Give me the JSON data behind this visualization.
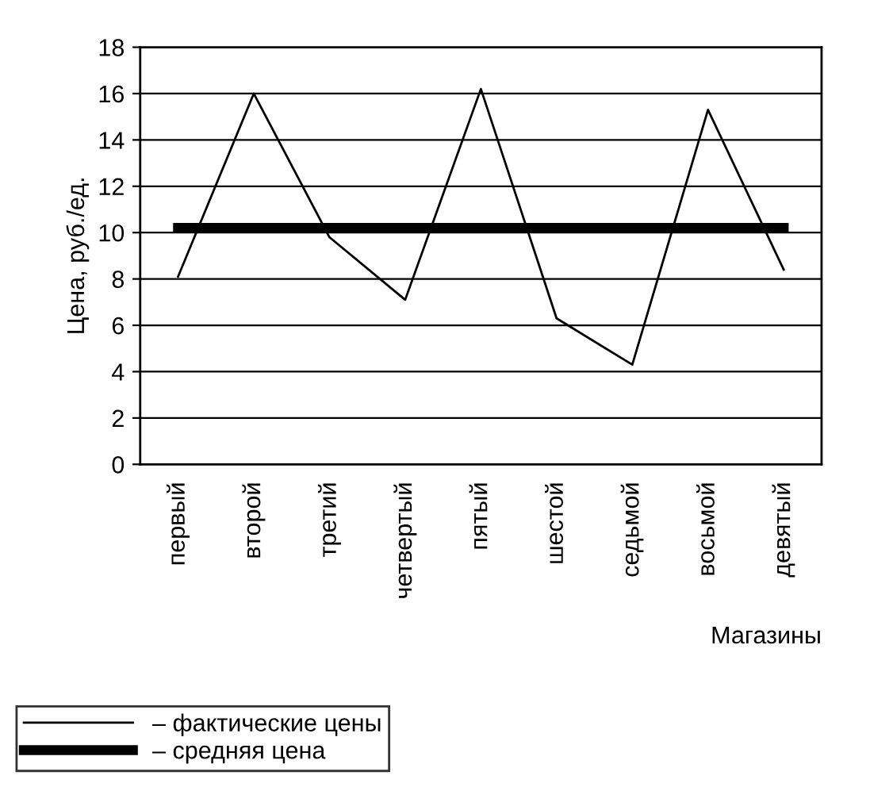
{
  "chart_data": {
    "type": "line",
    "ylabel": "Цена, руб./ед.",
    "xlabel": "Магазины",
    "categories": [
      "первый",
      "второй",
      "третий",
      "четвертый",
      "пятый",
      "шестой",
      "седьмой",
      "восьмой",
      "девятый"
    ],
    "series": [
      {
        "name": "– фактические цены",
        "color": "#000000",
        "values": [
          8.1,
          16,
          9.8,
          7.1,
          16.2,
          6.3,
          4.3,
          15.3,
          8.4
        ]
      },
      {
        "name": "– средняя цена",
        "color": "#000000",
        "values": [
          10.2,
          10.2,
          10.2,
          10.2,
          10.2,
          10.2,
          10.2,
          10.2,
          10.2
        ]
      }
    ],
    "ylim": [
      0,
      18
    ],
    "yticks": [
      0,
      2,
      4,
      6,
      8,
      10,
      12,
      14,
      16,
      18
    ],
    "grid": "y",
    "legend": "bottom left",
    "marker": "none",
    "line_style": "solid"
  }
}
